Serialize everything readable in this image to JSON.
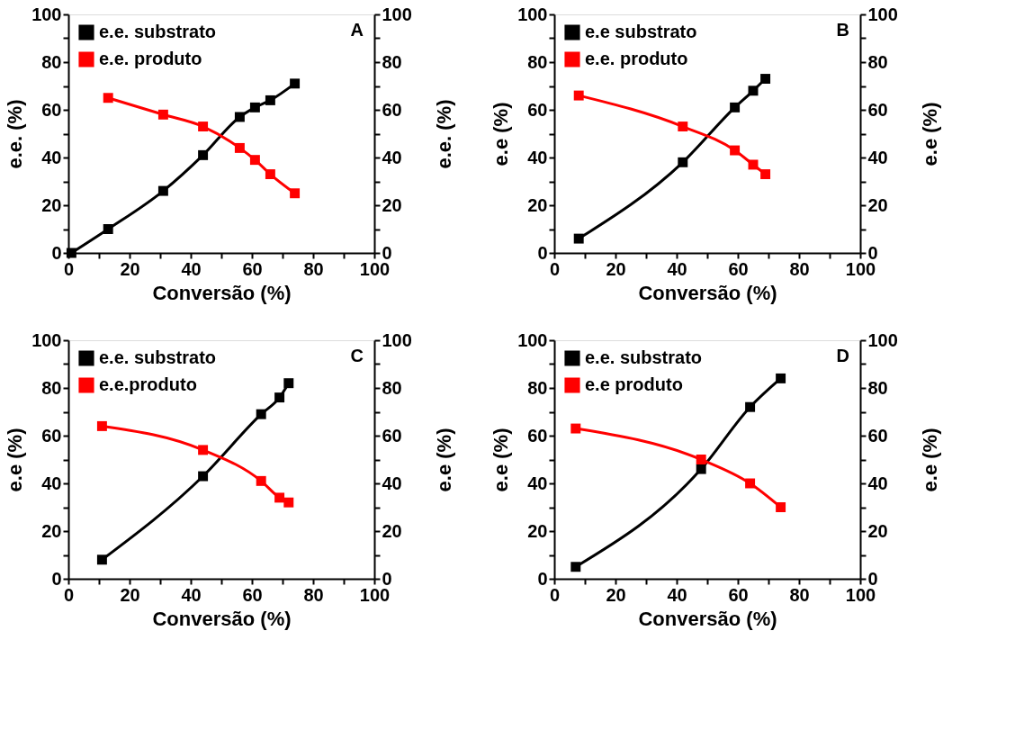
{
  "chart_data": [
    {
      "type": "line",
      "xlabel": "Conversão (%)",
      "ylabel": "e.e.  (%)",
      "y2label": "e.e.  (%)",
      "annotations": [
        "A"
      ],
      "legend": "top left",
      "marker": "square",
      "xlim": [
        0,
        100
      ],
      "xticks": [
        0,
        {
          "value": 10,
          "label": null
        },
        20,
        {
          "value": 30,
          "label": null
        },
        40,
        {
          "value": 50,
          "label": null
        },
        60,
        {
          "value": 70,
          "label": null
        },
        80,
        {
          "value": 90,
          "label": null
        },
        100
      ],
      "ylim": [
        0,
        100
      ],
      "yticks": [
        0,
        {
          "value": 10,
          "label": null
        },
        20,
        {
          "value": 30,
          "label": null
        },
        40,
        {
          "value": 50,
          "label": null
        },
        60,
        {
          "value": 70,
          "label": null
        },
        80,
        {
          "value": 90,
          "label": null
        },
        100
      ],
      "y2lim": [
        0,
        100
      ],
      "y2ticks": [
        0,
        {
          "value": 10,
          "label": null
        },
        20,
        {
          "value": 30,
          "label": null
        },
        40,
        {
          "value": 50,
          "label": null
        },
        60,
        {
          "value": 70,
          "label": null
        },
        80,
        {
          "value": 90,
          "label": null
        },
        100
      ],
      "series": [
        {
          "name": "e.e. substrato",
          "color": "#000000",
          "x": [
            1,
            13,
            31,
            44,
            56,
            61,
            66,
            74
          ],
          "values": [
            0,
            10,
            26,
            41,
            57,
            61,
            64,
            71
          ]
        },
        {
          "name": "e.e. produto",
          "color": "#ff0000",
          "x": [
            13,
            31,
            44,
            56,
            61,
            66,
            74
          ],
          "values": [
            65,
            58,
            53,
            44,
            39,
            33,
            25
          ]
        }
      ]
    },
    {
      "type": "line",
      "xlabel": "Conversão (%)",
      "ylabel": "e.e (%)",
      "y2label": "e.e (%)",
      "annotations": [
        "B"
      ],
      "legend": "top left",
      "marker": "square",
      "xlim": [
        0,
        100
      ],
      "xticks": [
        0,
        {
          "value": 10,
          "label": null
        },
        20,
        {
          "value": 30,
          "label": null
        },
        40,
        {
          "value": 50,
          "label": null
        },
        60,
        {
          "value": 70,
          "label": null
        },
        80,
        {
          "value": 90,
          "label": null
        },
        100
      ],
      "ylim": [
        0,
        100
      ],
      "yticks": [
        0,
        {
          "value": 10,
          "label": null
        },
        20,
        {
          "value": 30,
          "label": null
        },
        40,
        {
          "value": 50,
          "label": null
        },
        60,
        {
          "value": 70,
          "label": null
        },
        80,
        {
          "value": 90,
          "label": null
        },
        100
      ],
      "y2lim": [
        0,
        100
      ],
      "y2ticks": [
        0,
        {
          "value": 10,
          "label": null
        },
        20,
        {
          "value": 30,
          "label": null
        },
        40,
        {
          "value": 50,
          "label": null
        },
        60,
        {
          "value": 70,
          "label": null
        },
        80,
        {
          "value": 90,
          "label": null
        },
        100
      ],
      "series": [
        {
          "name": "e.e substrato",
          "color": "#000000",
          "x": [
            8,
            42,
            59,
            65,
            69
          ],
          "values": [
            6,
            38,
            61,
            68,
            73
          ]
        },
        {
          "name": "e.e. produto",
          "color": "#ff0000",
          "x": [
            8,
            42,
            59,
            65,
            69
          ],
          "values": [
            66,
            53,
            43,
            37,
            33
          ]
        }
      ]
    },
    {
      "type": "line",
      "xlabel": "Conversão (%)",
      "ylabel": "e.e (%)",
      "y2label": "e.e (%)",
      "annotations": [
        "C"
      ],
      "legend": "top left",
      "marker": "square",
      "xlim": [
        0,
        100
      ],
      "xticks": [
        0,
        {
          "value": 10,
          "label": null
        },
        20,
        {
          "value": 30,
          "label": null
        },
        40,
        {
          "value": 50,
          "label": null
        },
        60,
        {
          "value": 70,
          "label": null
        },
        80,
        {
          "value": 90,
          "label": null
        },
        100
      ],
      "ylim": [
        0,
        100
      ],
      "yticks": [
        0,
        {
          "value": 10,
          "label": null
        },
        20,
        {
          "value": 30,
          "label": null
        },
        40,
        {
          "value": 50,
          "label": null
        },
        60,
        {
          "value": 70,
          "label": null
        },
        80,
        {
          "value": 90,
          "label": null
        },
        100
      ],
      "y2lim": [
        0,
        100
      ],
      "y2ticks": [
        0,
        {
          "value": 10,
          "label": null
        },
        20,
        {
          "value": 30,
          "label": null
        },
        40,
        {
          "value": 50,
          "label": null
        },
        60,
        {
          "value": 70,
          "label": null
        },
        80,
        {
          "value": 90,
          "label": null
        },
        100
      ],
      "series": [
        {
          "name": "e.e. substrato",
          "color": "#000000",
          "x": [
            11,
            44,
            63,
            69,
            72
          ],
          "values": [
            8,
            43,
            69,
            76,
            82
          ]
        },
        {
          "name": "e.e.produto",
          "color": "#ff0000",
          "x": [
            11,
            44,
            63,
            69,
            72
          ],
          "values": [
            64,
            54,
            41,
            34,
            32
          ]
        }
      ]
    },
    {
      "type": "line",
      "xlabel": "Conversão (%)",
      "ylabel": "e.e (%)",
      "y2label": "e.e (%)",
      "annotations": [
        "D"
      ],
      "legend": "top left",
      "marker": "square",
      "xlim": [
        0,
        100
      ],
      "xticks": [
        0,
        {
          "value": 10,
          "label": null
        },
        20,
        {
          "value": 30,
          "label": null
        },
        40,
        {
          "value": 50,
          "label": null
        },
        60,
        {
          "value": 70,
          "label": null
        },
        80,
        {
          "value": 90,
          "label": null
        },
        100
      ],
      "ylim": [
        0,
        100
      ],
      "yticks": [
        0,
        {
          "value": 10,
          "label": null
        },
        20,
        {
          "value": 30,
          "label": null
        },
        40,
        {
          "value": 50,
          "label": null
        },
        60,
        {
          "value": 70,
          "label": null
        },
        80,
        {
          "value": 90,
          "label": null
        },
        100
      ],
      "y2lim": [
        0,
        100
      ],
      "y2ticks": [
        0,
        {
          "value": 10,
          "label": null
        },
        20,
        {
          "value": 30,
          "label": null
        },
        40,
        {
          "value": 50,
          "label": null
        },
        60,
        {
          "value": 70,
          "label": null
        },
        80,
        {
          "value": 90,
          "label": null
        },
        100
      ],
      "series": [
        {
          "name": "e.e. substrato",
          "color": "#000000",
          "x": [
            7,
            48,
            64,
            74
          ],
          "values": [
            5,
            46,
            72,
            84
          ]
        },
        {
          "name": "e.e produto",
          "color": "#ff0000",
          "x": [
            7,
            48,
            64,
            74
          ],
          "values": [
            63,
            50,
            40,
            30
          ]
        }
      ]
    }
  ]
}
